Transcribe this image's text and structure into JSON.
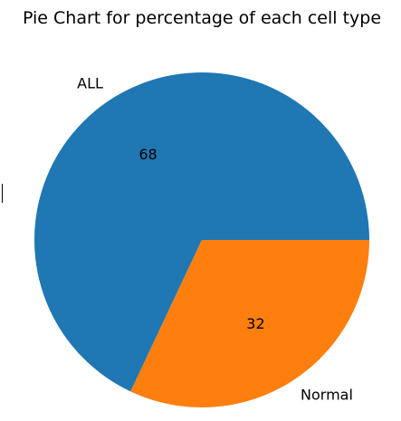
{
  "chart_data": {
    "type": "pie",
    "title": "Pie Chart for percentage of each cell type",
    "slices": [
      {
        "label": "ALL",
        "value": 68,
        "color": "#1f77b4"
      },
      {
        "label": "Normal",
        "value": 32,
        "color": "#ff7f0e"
      }
    ],
    "legend": "none"
  }
}
